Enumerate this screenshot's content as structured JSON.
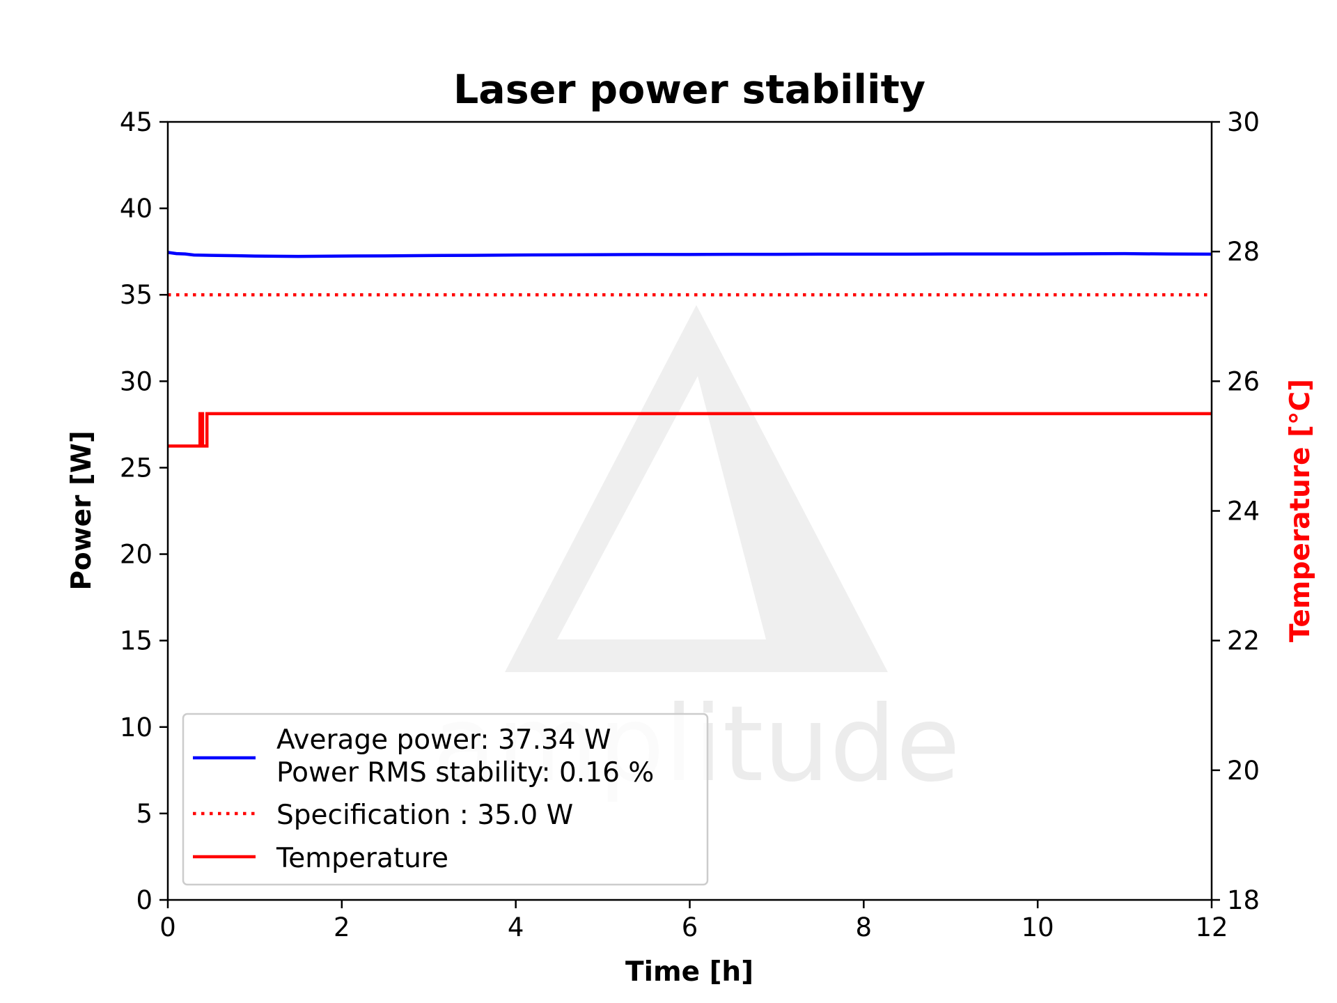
{
  "chart_data": {
    "type": "line",
    "title": "Laser power stability",
    "xlabel": "Time [h]",
    "ylabel": "Power [W]",
    "y2label": "Temperature [°C]",
    "xlim": [
      0,
      12
    ],
    "ylim": [
      0,
      45
    ],
    "y2lim": [
      18,
      30
    ],
    "xticks": [
      "0",
      "2",
      "4",
      "6",
      "8",
      "10",
      "12"
    ],
    "yticks": [
      "0",
      "5",
      "10",
      "15",
      "20",
      "25",
      "30",
      "35",
      "40",
      "45"
    ],
    "y2ticks": [
      "18",
      "20",
      "22",
      "24",
      "26",
      "28",
      "30"
    ],
    "grid": false,
    "legend_position": "lower-left",
    "series": [
      {
        "name": "Average power: 37.34 W\nPower RMS stability: 0.16 %",
        "legend_lines": [
          "Average power: 37.34 W",
          "Power RMS stability: 0.16 %"
        ],
        "axis": "left",
        "style": "solid",
        "color": "#0000ff",
        "x": [
          0,
          0.1,
          0.2,
          0.3,
          0.5,
          0.8,
          1.0,
          1.5,
          2.0,
          2.5,
          3.0,
          3.5,
          4.0,
          4.5,
          5.0,
          5.5,
          6.0,
          6.5,
          7.0,
          7.5,
          8.0,
          8.5,
          9.0,
          9.5,
          10.0,
          10.5,
          11.0,
          11.5,
          12.0
        ],
        "values": [
          37.45,
          37.38,
          37.36,
          37.3,
          37.28,
          37.26,
          37.24,
          37.22,
          37.24,
          37.25,
          37.27,
          37.28,
          37.3,
          37.31,
          37.32,
          37.33,
          37.33,
          37.34,
          37.34,
          37.35,
          37.35,
          37.35,
          37.36,
          37.36,
          37.36,
          37.37,
          37.38,
          37.36,
          37.35
        ]
      },
      {
        "name": "Specification : 35.0 W",
        "axis": "left",
        "style": "dotted",
        "color": "#ff0000",
        "x": [
          0,
          12
        ],
        "values": [
          35.0,
          35.0
        ]
      },
      {
        "name": "Temperature",
        "axis": "right",
        "style": "solid",
        "color": "#ff0000",
        "x": [
          0,
          0.37,
          0.37,
          0.4,
          0.4,
          0.45,
          0.45,
          12.0
        ],
        "values": [
          25.0,
          25.0,
          25.5,
          25.5,
          25.0,
          25.0,
          25.5,
          25.5
        ]
      }
    ]
  },
  "watermark": {
    "text": "amplitude",
    "color": "#ececec"
  }
}
